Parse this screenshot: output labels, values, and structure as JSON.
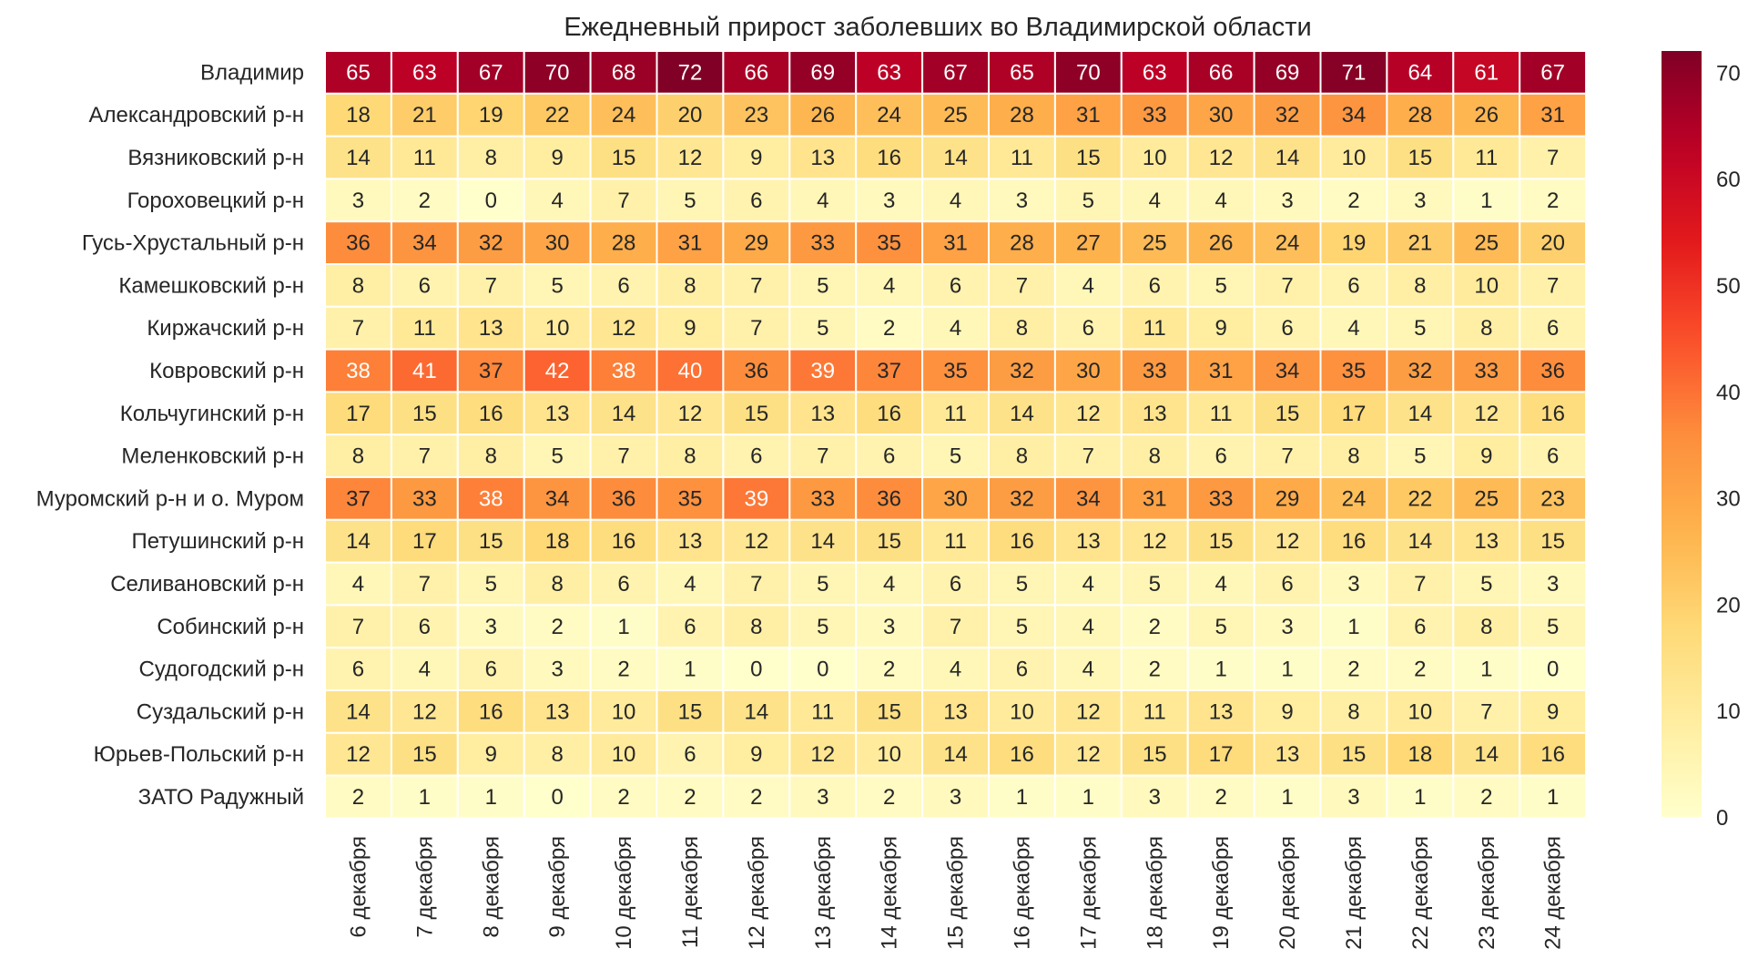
{
  "chart_data": {
    "type": "heatmap",
    "title": "Ежедневный прирост заболевших во Владимирской области",
    "xlabel": "",
    "ylabel": "",
    "columns": [
      "6 декабря",
      "7 декабря",
      "8 декабря",
      "9 декабря",
      "10 декабря",
      "11 декабря",
      "12 декабря",
      "13 декабря",
      "14 декабря",
      "15 декабря",
      "16 декабря",
      "17 декабря",
      "18 декабря",
      "19 декабря",
      "20 декабря",
      "21 декабря",
      "22 декабря",
      "23 декабря",
      "24 декабря"
    ],
    "rows": [
      "Владимир",
      "Александровский р-н",
      "Вязниковский р-н",
      "Гороховецкий р-н",
      "Гусь-Хрустальный р-н",
      "Камешковский р-н",
      "Киржачский р-н",
      "Ковровский р-н",
      "Кольчугинский р-н",
      "Меленковский р-н",
      "Муромский р-н и о. Муром",
      "Петушинский р-н",
      "Селивановский р-н",
      "Собинский р-н",
      "Судогодский р-н",
      "Суздальский р-н",
      "Юрьев-Польский р-н",
      "ЗАТО Радужный"
    ],
    "values": [
      [
        65,
        63,
        67,
        70,
        68,
        72,
        66,
        69,
        63,
        67,
        65,
        70,
        63,
        66,
        69,
        71,
        64,
        61,
        67
      ],
      [
        18,
        21,
        19,
        22,
        24,
        20,
        23,
        26,
        24,
        25,
        28,
        31,
        33,
        30,
        32,
        34,
        28,
        26,
        31
      ],
      [
        14,
        11,
        8,
        9,
        15,
        12,
        9,
        13,
        16,
        14,
        11,
        15,
        10,
        12,
        14,
        10,
        15,
        11,
        7
      ],
      [
        3,
        2,
        0,
        4,
        7,
        5,
        6,
        4,
        3,
        4,
        3,
        5,
        4,
        4,
        3,
        2,
        3,
        1,
        2
      ],
      [
        36,
        34,
        32,
        30,
        28,
        31,
        29,
        33,
        35,
        31,
        28,
        27,
        25,
        26,
        24,
        19,
        21,
        25,
        20
      ],
      [
        8,
        6,
        7,
        5,
        6,
        8,
        7,
        5,
        4,
        6,
        7,
        4,
        6,
        5,
        7,
        6,
        8,
        10,
        7
      ],
      [
        7,
        11,
        13,
        10,
        12,
        9,
        7,
        5,
        2,
        4,
        8,
        6,
        11,
        9,
        6,
        4,
        5,
        8,
        6
      ],
      [
        38,
        41,
        37,
        42,
        38,
        40,
        36,
        39,
        37,
        35,
        32,
        30,
        33,
        31,
        34,
        35,
        32,
        33,
        36
      ],
      [
        17,
        15,
        16,
        13,
        14,
        12,
        15,
        13,
        16,
        11,
        14,
        12,
        13,
        11,
        15,
        17,
        14,
        12,
        16
      ],
      [
        8,
        7,
        8,
        5,
        7,
        8,
        6,
        7,
        6,
        5,
        8,
        7,
        8,
        6,
        7,
        8,
        5,
        9,
        6
      ],
      [
        37,
        33,
        38,
        34,
        36,
        35,
        39,
        33,
        36,
        30,
        32,
        34,
        31,
        33,
        29,
        24,
        22,
        25,
        23
      ],
      [
        14,
        17,
        15,
        18,
        16,
        13,
        12,
        14,
        15,
        11,
        16,
        13,
        12,
        15,
        12,
        16,
        14,
        13,
        15
      ],
      [
        4,
        7,
        5,
        8,
        6,
        4,
        7,
        5,
        4,
        6,
        5,
        4,
        5,
        4,
        6,
        3,
        7,
        5,
        3
      ],
      [
        7,
        6,
        3,
        2,
        1,
        6,
        8,
        5,
        3,
        7,
        5,
        4,
        2,
        5,
        3,
        1,
        6,
        8,
        5
      ],
      [
        6,
        4,
        6,
        3,
        2,
        1,
        0,
        0,
        2,
        4,
        6,
        4,
        2,
        1,
        1,
        2,
        2,
        1,
        0
      ],
      [
        14,
        12,
        16,
        13,
        10,
        15,
        14,
        11,
        15,
        13,
        10,
        12,
        11,
        13,
        9,
        8,
        10,
        7,
        9
      ],
      [
        12,
        15,
        9,
        8,
        10,
        6,
        9,
        12,
        10,
        14,
        16,
        12,
        15,
        17,
        13,
        15,
        18,
        14,
        16
      ],
      [
        2,
        1,
        1,
        0,
        2,
        2,
        2,
        3,
        2,
        3,
        1,
        1,
        3,
        2,
        1,
        3,
        1,
        2,
        1
      ]
    ],
    "vmin": 0,
    "vmax": 72,
    "colorbar_ticks": [
      0,
      10,
      20,
      30,
      40,
      50,
      60,
      70
    ],
    "colormap": "YlOrRd",
    "colors": {
      "text_light": "#ffffff",
      "text_dark": "#262626",
      "cell_border": "#ffffff"
    }
  }
}
